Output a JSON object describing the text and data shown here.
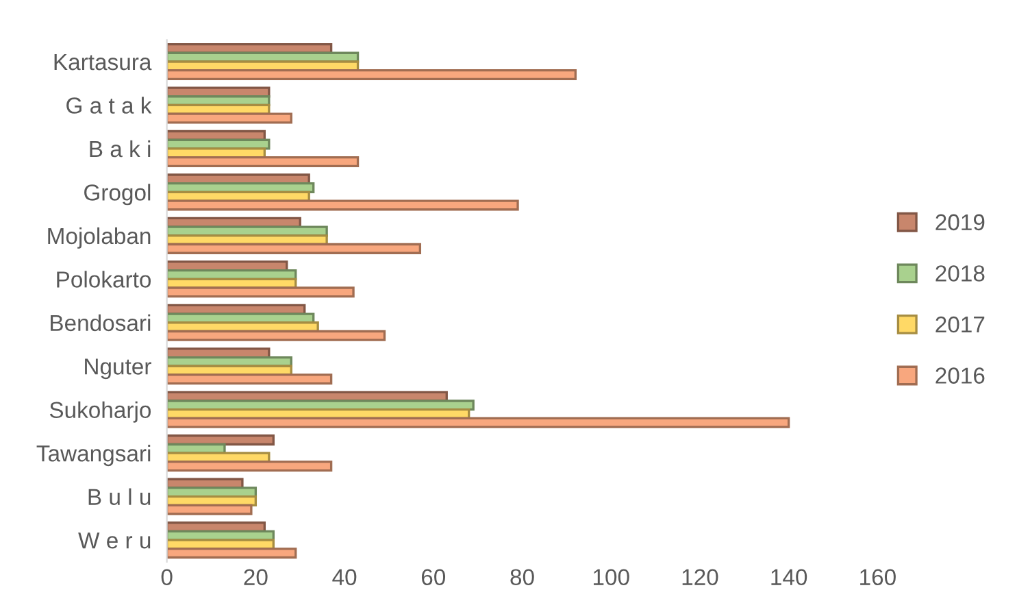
{
  "chart_data": {
    "type": "bar",
    "orientation": "horizontal",
    "categories": [
      "Kartasura",
      "G a t a k",
      "B a k i",
      "Grogol",
      "Mojolaban",
      "Polokarto",
      "Bendosari",
      "Nguter",
      "Sukoharjo",
      "Tawangsari",
      "B u l u",
      "W e r u"
    ],
    "series": [
      {
        "name": "2019",
        "color": "#c8866c",
        "values": [
          37,
          23,
          22,
          32,
          30,
          27,
          31,
          23,
          63,
          24,
          17,
          22
        ]
      },
      {
        "name": "2018",
        "color": "#a9d18e",
        "values": [
          43,
          23,
          23,
          33,
          36,
          29,
          33,
          28,
          69,
          13,
          20,
          24
        ]
      },
      {
        "name": "2017",
        "color": "#ffd966",
        "values": [
          43,
          23,
          22,
          32,
          36,
          29,
          34,
          28,
          68,
          23,
          20,
          24
        ]
      },
      {
        "name": "2016",
        "color": "#f8a77e",
        "values": [
          92,
          28,
          43,
          79,
          57,
          42,
          49,
          37,
          140,
          37,
          19,
          29
        ]
      }
    ],
    "xlim": [
      0,
      160
    ],
    "xticks": [
      0,
      20,
      40,
      60,
      80,
      100,
      120,
      140,
      160
    ],
    "grid": false,
    "legend": "right"
  }
}
